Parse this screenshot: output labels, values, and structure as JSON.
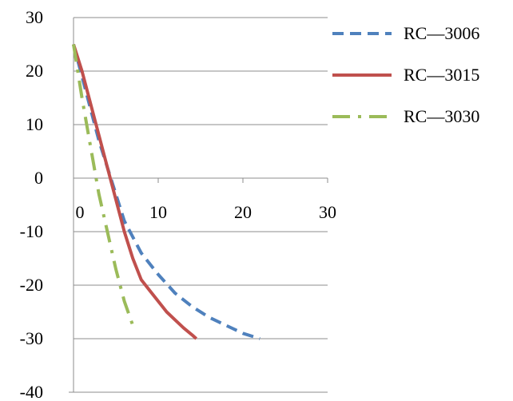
{
  "chart_data": {
    "type": "line",
    "title": "",
    "xlabel": "",
    "ylabel": "",
    "xlim": [
      0,
      30
    ],
    "ylim": [
      -40,
      30
    ],
    "x_ticks": [
      0,
      10,
      20,
      30
    ],
    "y_ticks": [
      30,
      20,
      10,
      0,
      -10,
      -20,
      -30,
      -40
    ],
    "grid": "horizontal",
    "legend_position": "right",
    "series": [
      {
        "name": "RC—3006",
        "color": "#4f81bd",
        "style": "dashed",
        "points": [
          [
            0,
            25
          ],
          [
            1,
            19
          ],
          [
            2,
            13
          ],
          [
            3,
            7
          ],
          [
            4,
            2
          ],
          [
            5,
            -3
          ],
          [
            6,
            -8
          ],
          [
            7,
            -11
          ],
          [
            8,
            -14
          ],
          [
            10,
            -18
          ],
          [
            12,
            -21.5
          ],
          [
            14,
            -24
          ],
          [
            16,
            -26
          ],
          [
            18,
            -27.5
          ],
          [
            20,
            -29
          ],
          [
            22,
            -30
          ]
        ]
      },
      {
        "name": "RC—3015",
        "color": "#c0504d",
        "style": "solid",
        "points": [
          [
            0,
            25
          ],
          [
            1,
            20
          ],
          [
            2,
            14
          ],
          [
            3,
            8
          ],
          [
            4,
            2
          ],
          [
            5,
            -4
          ],
          [
            6,
            -10
          ],
          [
            7,
            -15
          ],
          [
            8,
            -19
          ],
          [
            9,
            -21
          ],
          [
            10,
            -23
          ],
          [
            11,
            -25
          ],
          [
            12,
            -26.5
          ],
          [
            13,
            -28
          ],
          [
            14,
            -29.3
          ],
          [
            14.5,
            -30
          ]
        ]
      },
      {
        "name": "RC—3030",
        "color": "#9bbb59",
        "style": "dashdot",
        "points": [
          [
            0,
            25
          ],
          [
            0.5,
            20
          ],
          [
            1,
            15
          ],
          [
            2,
            6
          ],
          [
            3,
            -3
          ],
          [
            4,
            -10
          ],
          [
            5,
            -17
          ],
          [
            6,
            -23
          ],
          [
            7,
            -27.5
          ]
        ]
      }
    ]
  }
}
